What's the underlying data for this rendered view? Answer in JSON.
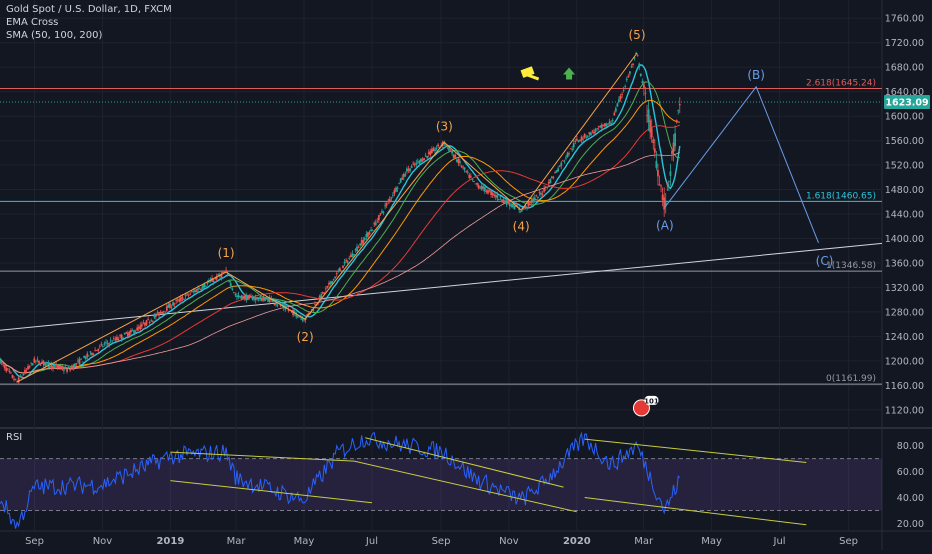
{
  "header": {
    "symbol": "Gold Spot / U.S. Dollar, 1D, FXCM",
    "indicator_1": "EMA Cross",
    "indicator_2": "SMA (50, 100, 200)"
  },
  "rsi_panel": {
    "title": "RSI"
  },
  "colors": {
    "background": "#131722",
    "up_candle": "#26a69a",
    "down_candle": "#ef5350",
    "wave_labels": "#f7a44a",
    "abc_labels": "#6a9ce8",
    "fib_red": "#e05a5a",
    "fib_teal": "#26c6da",
    "rsi_line": "#2962ff",
    "channel": "#c9cc3f"
  },
  "chart_data": [
    {
      "type": "candlestick",
      "ylim": [
        1100,
        1780
      ],
      "x_ticks": [
        "Sep",
        "Nov",
        "2019",
        "Mar",
        "May",
        "Jul",
        "Sep",
        "Nov",
        "2020",
        "Mar",
        "May",
        "Jul",
        "Sep"
      ],
      "y_ticks": [
        1120,
        1160,
        1200,
        1240,
        1280,
        1320,
        1360,
        1400,
        1440,
        1480,
        1520,
        1560,
        1600,
        1640,
        1680,
        1720,
        1760
      ],
      "last_price": "1623.09",
      "price_path": [
        {
          "x": "2018-08",
          "y": 1200
        },
        {
          "x": "2018-08-16",
          "y": 1165
        },
        {
          "x": "2018-09",
          "y": 1200
        },
        {
          "x": "2018-10",
          "y": 1185
        },
        {
          "x": "2018-11",
          "y": 1225
        },
        {
          "x": "2018-12",
          "y": 1250
        },
        {
          "x": "2019-01",
          "y": 1290
        },
        {
          "x": "2019-02-20",
          "y": 1345
        },
        {
          "x": "2019-03",
          "y": 1305
        },
        {
          "x": "2019-04",
          "y": 1300
        },
        {
          "x": "2019-05-02",
          "y": 1268
        },
        {
          "x": "2019-06",
          "y": 1345
        },
        {
          "x": "2019-07",
          "y": 1415
        },
        {
          "x": "2019-08",
          "y": 1510
        },
        {
          "x": "2019-09-04",
          "y": 1557
        },
        {
          "x": "2019-10",
          "y": 1490
        },
        {
          "x": "2019-11-12",
          "y": 1446
        },
        {
          "x": "2019-12",
          "y": 1475
        },
        {
          "x": "2020-01",
          "y": 1560
        },
        {
          "x": "2020-02",
          "y": 1590
        },
        {
          "x": "2020-02-24",
          "y": 1703
        },
        {
          "x": "2020-03-20",
          "y": 1451
        },
        {
          "x": "2020-04-03",
          "y": 1623
        }
      ],
      "wave_labels": [
        "(1)",
        "(2)",
        "(3)",
        "(4)",
        "(5)",
        "(A)",
        "(B)",
        "(C)"
      ],
      "fib_levels": [
        {
          "label": "2.618(1645.24)",
          "value": 1645.24
        },
        {
          "label": "1.618(1460.65)",
          "value": 1460.65
        },
        {
          "label": "1(1346.58)",
          "value": 1346.58
        },
        {
          "label": "0(1161.99)",
          "value": 1161.99
        }
      ],
      "moving_averages": [
        "EMA fast",
        "EMA slow",
        "SMA 50",
        "SMA 100",
        "SMA 200"
      ],
      "projection": [
        {
          "x": "2020-03-20",
          "y": 1451
        },
        {
          "x": "2020-06-10",
          "y": 1648
        },
        {
          "x": "2020-08-05",
          "y": 1393
        }
      ],
      "event_badge": "101"
    },
    {
      "type": "line",
      "title": "RSI",
      "ylim": [
        15,
        92
      ],
      "y_ticks": [
        20,
        40,
        60,
        80
      ],
      "band": [
        30,
        70
      ],
      "values_path": [
        {
          "x": "2018-08",
          "y": 40
        },
        {
          "x": "2018-08-16",
          "y": 17
        },
        {
          "x": "2018-09",
          "y": 48
        },
        {
          "x": "2018-11",
          "y": 50
        },
        {
          "x": "2019-01",
          "y": 72
        },
        {
          "x": "2019-02-20",
          "y": 75
        },
        {
          "x": "2019-03",
          "y": 55
        },
        {
          "x": "2019-05",
          "y": 38
        },
        {
          "x": "2019-06",
          "y": 75
        },
        {
          "x": "2019-06-25",
          "y": 86
        },
        {
          "x": "2019-08",
          "y": 80
        },
        {
          "x": "2019-09-04",
          "y": 75
        },
        {
          "x": "2019-10",
          "y": 55
        },
        {
          "x": "2019-11-12",
          "y": 38
        },
        {
          "x": "2019-12",
          "y": 50
        },
        {
          "x": "2020-01-08",
          "y": 86
        },
        {
          "x": "2020-02",
          "y": 65
        },
        {
          "x": "2020-02-24",
          "y": 80
        },
        {
          "x": "2020-03-20",
          "y": 30
        },
        {
          "x": "2020-04-03",
          "y": 55
        }
      ]
    }
  ]
}
